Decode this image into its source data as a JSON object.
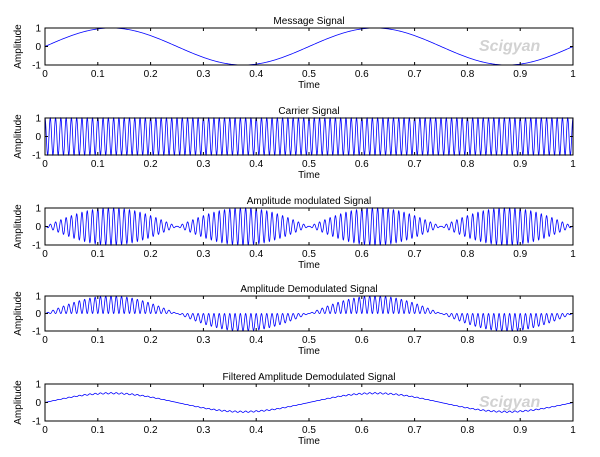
{
  "watermark": {
    "text": "Scigyan"
  },
  "style": {
    "line_color": "#0000ff",
    "axes_color": "#000000",
    "background": "#ffffff"
  },
  "chart_data": [
    {
      "type": "line",
      "title": "Message Signal",
      "xlabel": "Time",
      "ylabel": "Amplitude",
      "xlim": [
        0,
        1
      ],
      "ylim": [
        -1,
        1
      ],
      "xticks": [
        "0",
        "0.1",
        "0.2",
        "0.3",
        "0.4",
        "0.5",
        "0.6",
        "0.7",
        "0.8",
        "0.9",
        "1"
      ],
      "yticks": [
        "1",
        "0",
        "-1"
      ],
      "series": [
        {
          "name": "message",
          "signal": "sin(2*pi*2*t)",
          "message_freq_hz": 2
        }
      ],
      "watermark": true
    },
    {
      "type": "line",
      "title": "Carrier Signal",
      "xlabel": "Time",
      "ylabel": "Amplitude",
      "xlim": [
        0,
        1
      ],
      "ylim": [
        -1,
        1
      ],
      "xticks": [
        "0",
        "0.1",
        "0.2",
        "0.3",
        "0.4",
        "0.5",
        "0.6",
        "0.7",
        "0.8",
        "0.9",
        "1"
      ],
      "yticks": [
        "1",
        "0",
        "-1"
      ],
      "series": [
        {
          "name": "carrier",
          "signal": "cos(2*pi*100*t)",
          "carrier_freq_hz": 100
        }
      ]
    },
    {
      "type": "line",
      "title": "Amplitude modulated Signal",
      "xlabel": "Time",
      "ylabel": "Amplitude",
      "xlim": [
        0,
        1
      ],
      "ylim": [
        -1,
        1
      ],
      "xticks": [
        "0",
        "0.1",
        "0.2",
        "0.3",
        "0.4",
        "0.5",
        "0.6",
        "0.7",
        "0.8",
        "0.9",
        "1"
      ],
      "yticks": [
        "1",
        "0",
        "-1"
      ],
      "series": [
        {
          "name": "am",
          "signal": "|sin(2*pi*2*t)| * cos(2*pi*100*t)"
        }
      ]
    },
    {
      "type": "line",
      "title": "Amplitude Demodulated Signal",
      "xlabel": "Time",
      "ylabel": "Amplitude",
      "xlim": [
        0,
        1
      ],
      "ylim": [
        -1,
        1
      ],
      "xticks": [
        "0",
        "0.1",
        "0.2",
        "0.3",
        "0.4",
        "0.5",
        "0.6",
        "0.7",
        "0.8",
        "0.9",
        "1"
      ],
      "yticks": [
        "1",
        "0",
        "-1"
      ],
      "series": [
        {
          "name": "demod",
          "signal": "sin(2*pi*2*t) with carrier ripple",
          "ripple_depth": 1.0
        }
      ]
    },
    {
      "type": "line",
      "title": "Filtered Amplitude Demodulated Signal",
      "xlabel": "Time",
      "ylabel": "Amplitude",
      "xlim": [
        0,
        1
      ],
      "ylim": [
        -1,
        1
      ],
      "xticks": [
        "0",
        "0.1",
        "0.2",
        "0.3",
        "0.4",
        "0.5",
        "0.6",
        "0.7",
        "0.8",
        "0.9",
        "1"
      ],
      "yticks": [
        "1",
        "0",
        "-1"
      ],
      "series": [
        {
          "name": "filtered",
          "signal": "0.5*sin(2*pi*2*t) with small ripple",
          "amplitude": 0.5,
          "ripple_depth": 0.15
        }
      ],
      "watermark": true
    }
  ]
}
